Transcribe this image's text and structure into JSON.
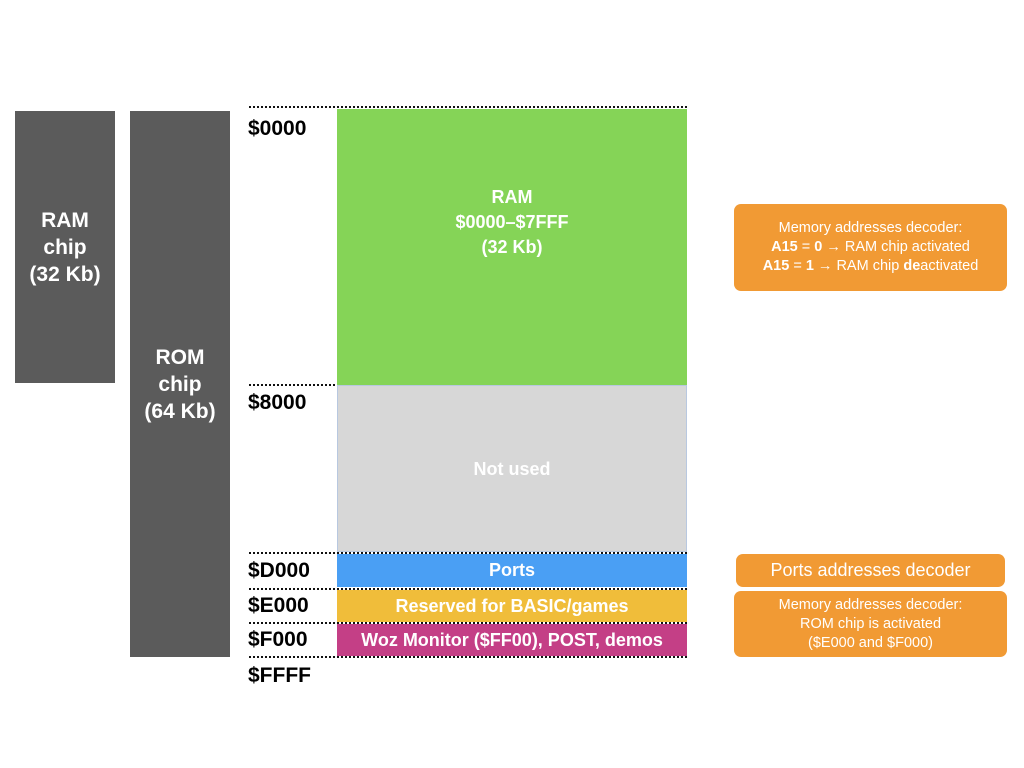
{
  "chips": {
    "ram": "RAM\nchip\n(32 Kb)",
    "rom": "ROM\nchip\n(64 Kb)"
  },
  "addresses": {
    "a0000": "$0000",
    "a8000": "$8000",
    "aD000": "$D000",
    "aE000": "$E000",
    "aF000": "$F000",
    "aFFFF": "$FFFF"
  },
  "regions": {
    "ram": "RAM\n$0000–$7FFF\n(32 Kb)",
    "unused": "Not used",
    "ports": "Ports",
    "basic": "Reserved for BASIC/games",
    "woz": "Woz Monitor ($FF00), POST, demos"
  },
  "notes": {
    "mem_decoder": {
      "title": "Memory addresses decoder:",
      "line1_bold_a": "A15",
      "line1_mid": " = ",
      "line1_bold_b": "0",
      "line1_rest": " → RAM chip activated",
      "line2_bold_a": "A15",
      "line2_mid": " = ",
      "line2_bold_b": "1",
      "line2_rest_a": " → RAM chip ",
      "line2_bold_c": "de",
      "line2_rest_b": "activated"
    },
    "ports_decoder": "Ports addresses decoder",
    "rom_decoder": {
      "line1": "Memory addresses decoder:",
      "line2": "ROM chip is activated",
      "line3": "($E000 and $F000)"
    }
  },
  "colors": {
    "chip": "#5b5b5b",
    "ram": "#85d457",
    "unused": "#d7d7d7",
    "ports": "#4a9ff4",
    "basic": "#f0bd3a",
    "woz": "#c43f86",
    "note": "#f19a34"
  }
}
